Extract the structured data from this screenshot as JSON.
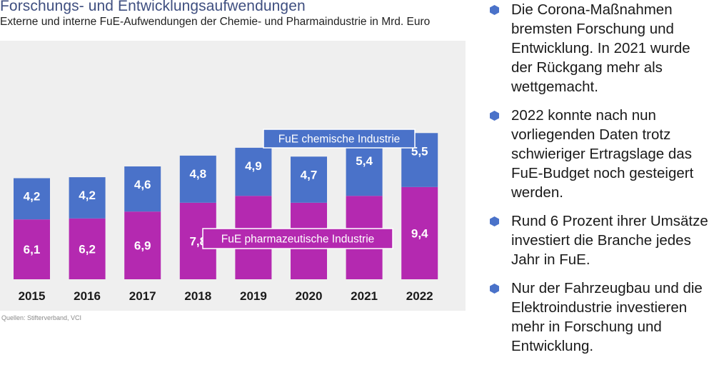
{
  "title": "Forschungs- und Entwicklungsaufwendungen",
  "subtitle": "Externe und interne FuE-Aufwendungen der Chemie- und Pharmaindustrie in Mrd. Euro",
  "source": "Quellen: Stifterverband, VCI",
  "colors": {
    "chem": "#4a72c9",
    "pharma": "#b429b0",
    "panel": "#efefef",
    "title": "#3f4f80",
    "bullet": "#4a72c9"
  },
  "chart_data": {
    "type": "bar",
    "stacked": true,
    "categories": [
      "2015",
      "2016",
      "2017",
      "2018",
      "2019",
      "2020",
      "2021",
      "2022"
    ],
    "series": [
      {
        "name": "FuE pharmazeutische Industrie",
        "values": [
          6.1,
          6.2,
          6.9,
          7.8,
          8.5,
          7.8,
          8.5,
          9.4
        ],
        "labels": [
          "6,1",
          "6,2",
          "6,9",
          "7,8",
          "8,5",
          "7,8",
          "8,5",
          "9,4"
        ],
        "color": "#b429b0"
      },
      {
        "name": "FuE chemische Industrie",
        "values": [
          4.2,
          4.2,
          4.6,
          4.8,
          4.9,
          4.7,
          5.4,
          5.5
        ],
        "labels": [
          "4,2",
          "4,2",
          "4,6",
          "4,8",
          "4,9",
          "4,7",
          "5,4",
          "5,5"
        ],
        "color": "#4a72c9"
      }
    ],
    "legend": "inline labels inside bars",
    "grid": false
  },
  "bullets": [
    "Die Corona-Maßnahmen bremsten Forschung und Entwicklung. In 2021 wurde der Rückgang mehr als wettgemacht.",
    "2022 konnte nach nun vorliegenden Daten trotz schwieriger Ertragslage das FuE-Budget noch gesteigert werden.",
    "Rund 6 Prozent ihrer Umsätze investiert die Branche jedes Jahr in FuE.",
    "Nur der Fahrzeugbau und die Elektroindustrie investieren mehr in Forschung und Entwicklung."
  ]
}
